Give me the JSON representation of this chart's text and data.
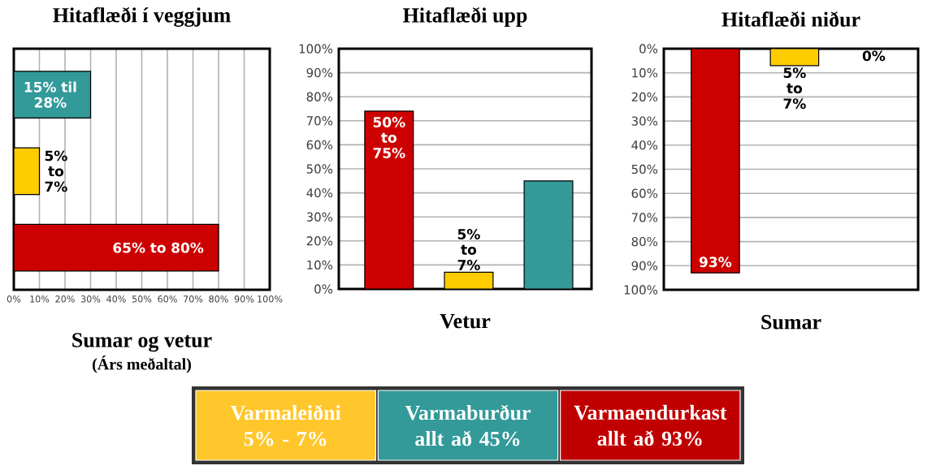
{
  "chart_data": [
    {
      "type": "bar",
      "orientation": "horizontal",
      "title": "Hitaflæði í veggjum",
      "xlabel": "Sumar og vetur",
      "annotations": [
        {
          "text": "15% til 28%",
          "x": 30
        },
        {
          "text": "5% to 7%",
          "x": 10
        },
        {
          "text": "65% to 80%",
          "x": 80
        },
        "(Árs meðaltal)"
      ],
      "categories": [
        null,
        null,
        null
      ],
      "values": [
        30,
        10,
        80
      ],
      "colors": [
        "#339999",
        "#ffcc00",
        "#cc0000"
      ],
      "xlim": [
        0,
        100
      ],
      "xticks": [
        {
          "value": 0,
          "label": "0%"
        },
        {
          "value": 10,
          "label": "10%"
        },
        {
          "value": 20,
          "label": "20%"
        },
        {
          "value": 30,
          "label": "30%"
        },
        {
          "value": 40,
          "label": "40%"
        },
        {
          "value": 50,
          "label": "50%"
        },
        {
          "value": 60,
          "label": "60%"
        },
        {
          "value": 70,
          "label": "70%"
        },
        {
          "value": 80,
          "label": "80%"
        },
        {
          "value": 90,
          "label": "90%"
        },
        {
          "value": 100,
          "label": "100%"
        }
      ],
      "grid": "x"
    },
    {
      "type": "bar",
      "title": "Hitaflæði upp",
      "xlabel": "Vetur",
      "annotations": [
        {
          "text": "50% to 75%",
          "y": 74
        },
        {
          "text": "5% to 7%",
          "y": 7
        }
      ],
      "categories": [
        null,
        null,
        null
      ],
      "values": [
        74,
        7,
        45
      ],
      "colors": [
        "#cc0000",
        "#ffcc00",
        "#339999"
      ],
      "ylim": [
        0,
        100
      ],
      "yticks": [
        {
          "value": 0,
          "label": "0%"
        },
        {
          "value": 10,
          "label": "10%"
        },
        {
          "value": 20,
          "label": "20%"
        },
        {
          "value": 30,
          "label": "30%"
        },
        {
          "value": 40,
          "label": "40%"
        },
        {
          "value": 50,
          "label": "50%"
        },
        {
          "value": 60,
          "label": "60%"
        },
        {
          "value": 70,
          "label": "70%"
        },
        {
          "value": 80,
          "label": "80%"
        },
        {
          "value": 90,
          "label": "90%"
        },
        {
          "value": 100,
          "label": "100%"
        }
      ],
      "grid": "y"
    },
    {
      "type": "bar",
      "title": "Hitaflæði niður",
      "xlabel": "Sumar",
      "annotations": [
        {
          "text": "5% to 7%",
          "y": 7
        }
      ],
      "categories": [
        null,
        null,
        null
      ],
      "values": [
        93,
        7,
        0
      ],
      "colors": [
        "#cc0000",
        "#ffcc00",
        "#339999"
      ],
      "value_labels": [
        "93%",
        null,
        "0%"
      ],
      "ylim": [
        100,
        0
      ],
      "yticks": [
        {
          "value": 0,
          "label": "0%"
        },
        {
          "value": 10,
          "label": "10%"
        },
        {
          "value": 20,
          "label": "20%"
        },
        {
          "value": 30,
          "label": "30%"
        },
        {
          "value": 40,
          "label": "40%"
        },
        {
          "value": 50,
          "label": "50%"
        },
        {
          "value": 60,
          "label": "60%"
        },
        {
          "value": 70,
          "label": "70%"
        },
        {
          "value": 80,
          "label": "80%"
        },
        {
          "value": 90,
          "label": "90%"
        },
        {
          "value": 100,
          "label": "100%"
        }
      ],
      "grid": "y"
    },
    {
      "type": "other",
      "categories": [
        "Varmaleiðni 5% - 7%",
        "Varmaburður allt að 45%",
        "Varmaendurkast allt að 93%"
      ],
      "colors": [
        "#ffc72c",
        "#339999",
        "#c00000"
      ]
    }
  ]
}
